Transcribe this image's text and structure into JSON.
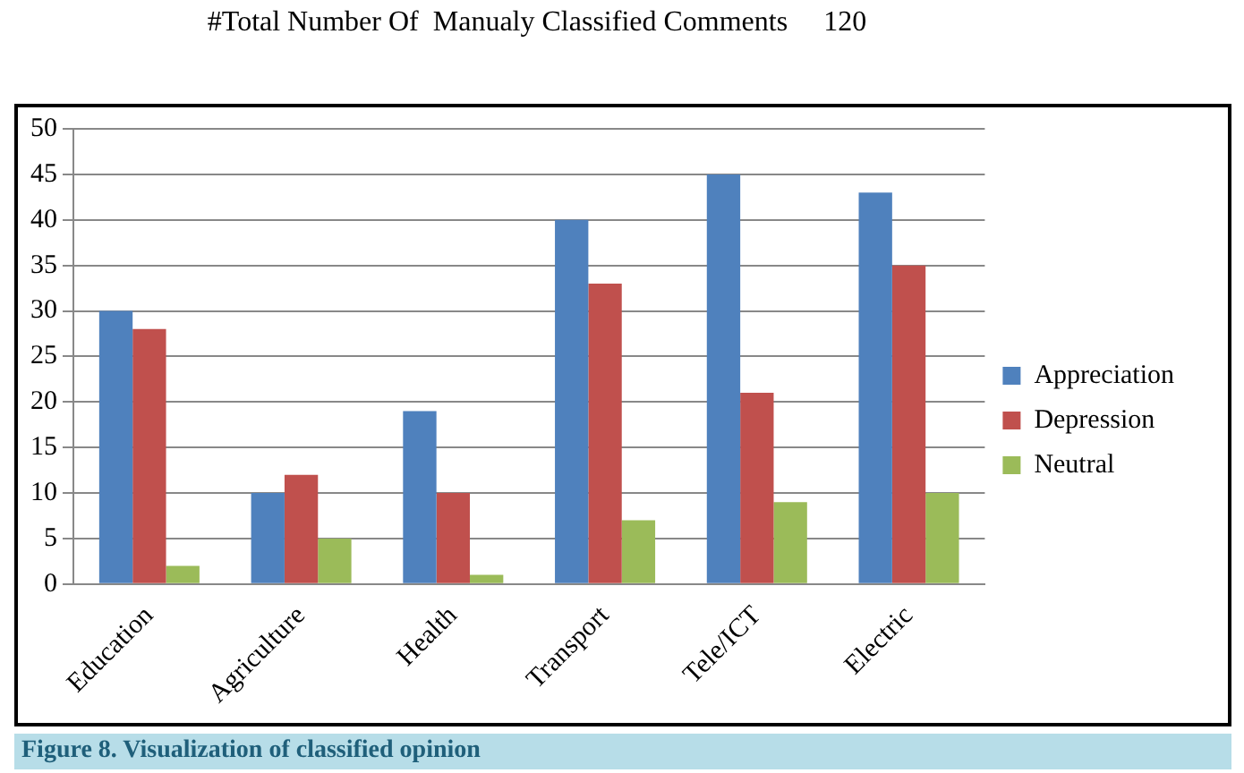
{
  "chart_data": {
    "type": "bar",
    "title": "#Total Number Of  Manualy Classified Comments     120",
    "categories": [
      "Education",
      "Agriculture",
      "Health",
      "Transport",
      "Tele/ICT",
      "Electric"
    ],
    "series": [
      {
        "name": "Appreciation",
        "color": "#4f81bd",
        "values": [
          30,
          10,
          19,
          40,
          45,
          43
        ]
      },
      {
        "name": "Depression",
        "color": "#c0504d",
        "values": [
          28,
          12,
          10,
          33,
          21,
          35
        ]
      },
      {
        "name": "Neutral",
        "color": "#9bbb59",
        "values": [
          2,
          5,
          1,
          7,
          9,
          10
        ]
      }
    ],
    "ylim": [
      0,
      50
    ],
    "yticks": [
      0,
      5,
      10,
      15,
      20,
      25,
      30,
      35,
      40,
      45,
      50
    ],
    "grid": "y",
    "legend": "right",
    "annotations": [
      "Figure 8. Visualization of classified opinion"
    ]
  }
}
